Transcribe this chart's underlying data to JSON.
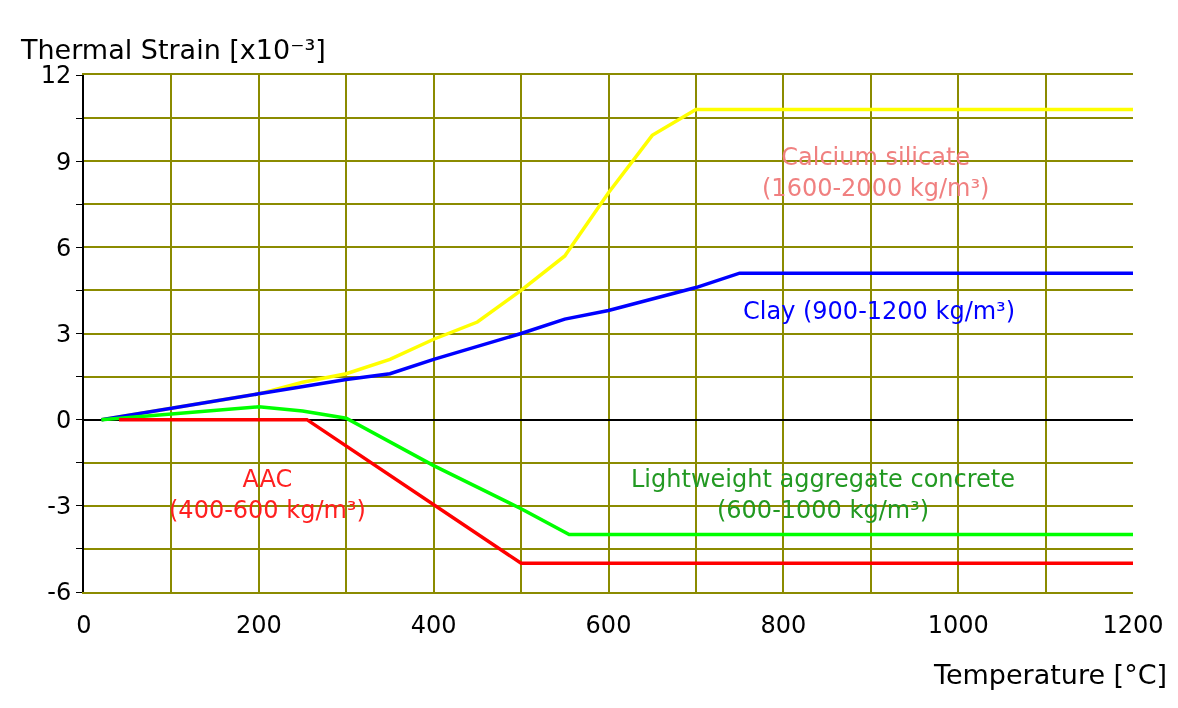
{
  "chart_data": {
    "type": "line",
    "xlabel": "Temperature [°C]",
    "ylabel": "Thermal Strain [x10⁻³]",
    "xlim": [
      0,
      1200
    ],
    "ylim": [
      -6,
      12
    ],
    "xticks": [
      0,
      {
        "value": 100,
        "label": null
      },
      200,
      {
        "value": 300,
        "label": null
      },
      400,
      {
        "value": 500,
        "label": null
      },
      600,
      {
        "value": 700,
        "label": null
      },
      800,
      {
        "value": 900,
        "label": null
      },
      1000,
      {
        "value": 1100,
        "label": null
      },
      1200
    ],
    "yticks": [
      -6,
      {
        "value": -4.5,
        "label": null
      },
      -3,
      {
        "value": -1.5,
        "label": null
      },
      0,
      {
        "value": 1.5,
        "label": null
      },
      3,
      {
        "value": 4.5,
        "label": null
      },
      6,
      {
        "value": 7.5,
        "label": null
      },
      9,
      {
        "value": 10.5,
        "label": null
      },
      12
    ],
    "grid": true,
    "legend": false,
    "line_style": "solid",
    "marker": "none",
    "series": [
      {
        "name": "Calcium silicate (1600-2000 kg/m³)",
        "color": "#ffff00",
        "x": [
          20,
          100,
          200,
          250,
          300,
          350,
          400,
          450,
          500,
          550,
          600,
          650,
          700,
          1200
        ],
        "values": [
          0,
          0.4,
          0.9,
          1.3,
          1.6,
          2.1,
          2.8,
          3.4,
          4.5,
          5.7,
          7.9,
          9.9,
          10.8,
          10.8
        ]
      },
      {
        "name": "Clay (900-1200 kg/m³)",
        "color": "#0000ff",
        "x": [
          20,
          100,
          200,
          300,
          350,
          400,
          500,
          550,
          600,
          700,
          750,
          1200
        ],
        "values": [
          0,
          0.4,
          0.9,
          1.4,
          1.6,
          2.1,
          3.0,
          3.5,
          3.8,
          4.6,
          5.1,
          5.1
        ]
      },
      {
        "name": "Lightweight aggregate concrete (600-1000 kg/m³)",
        "color": "#00ff00",
        "x": [
          20,
          100,
          200,
          250,
          300,
          400,
          500,
          555,
          1200
        ],
        "values": [
          0,
          0.2,
          0.45,
          0.3,
          0.05,
          -1.6,
          -3.1,
          -4.0,
          -4.0
        ]
      },
      {
        "name": "AAC (400-600 kg/m³)",
        "color": "#ff0000",
        "x": [
          40,
          255,
          500,
          1200
        ],
        "values": [
          0,
          0,
          -5,
          -5
        ]
      }
    ]
  }
}
